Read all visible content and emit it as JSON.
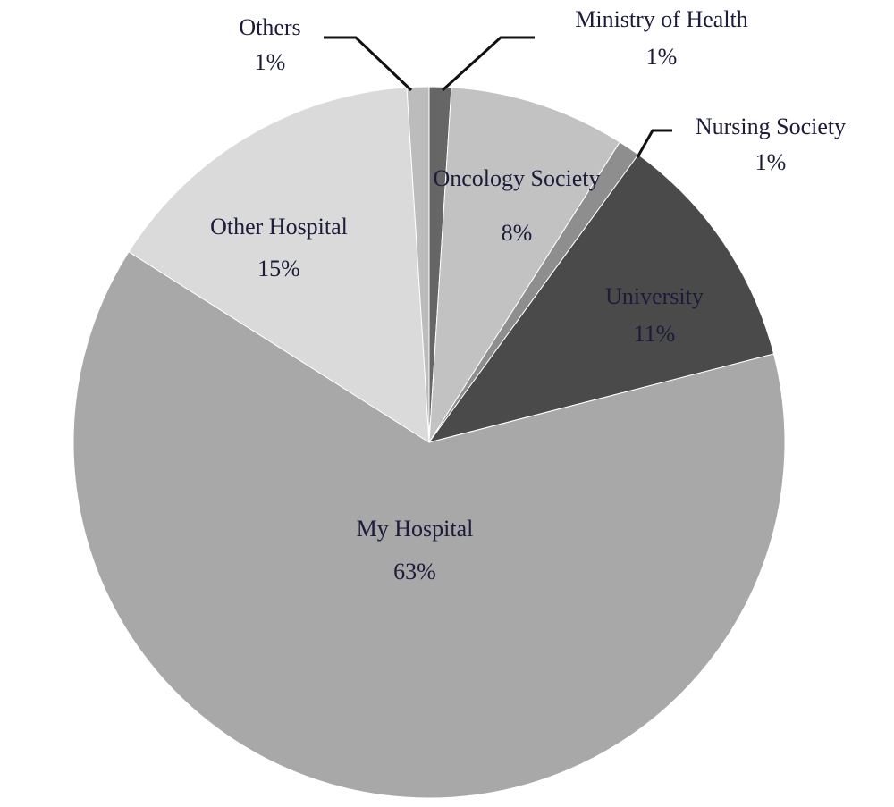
{
  "chart_data": {
    "type": "pie",
    "categories": [
      "Ministry of Health",
      "Oncology Society",
      "Nursing Society",
      "University",
      "My Hospital",
      "Other Hospital",
      "Others"
    ],
    "values": [
      1,
      8,
      1,
      11,
      63,
      15,
      1
    ],
    "value_labels": [
      "1%",
      "8%",
      "1%",
      "11%",
      "63%",
      "15%",
      "1%"
    ],
    "colors": [
      "#666666",
      "#c2c2c2",
      "#8e8e8e",
      "#4a4a4a",
      "#a8a8a8",
      "#dadada",
      "#bcbcbc"
    ]
  }
}
